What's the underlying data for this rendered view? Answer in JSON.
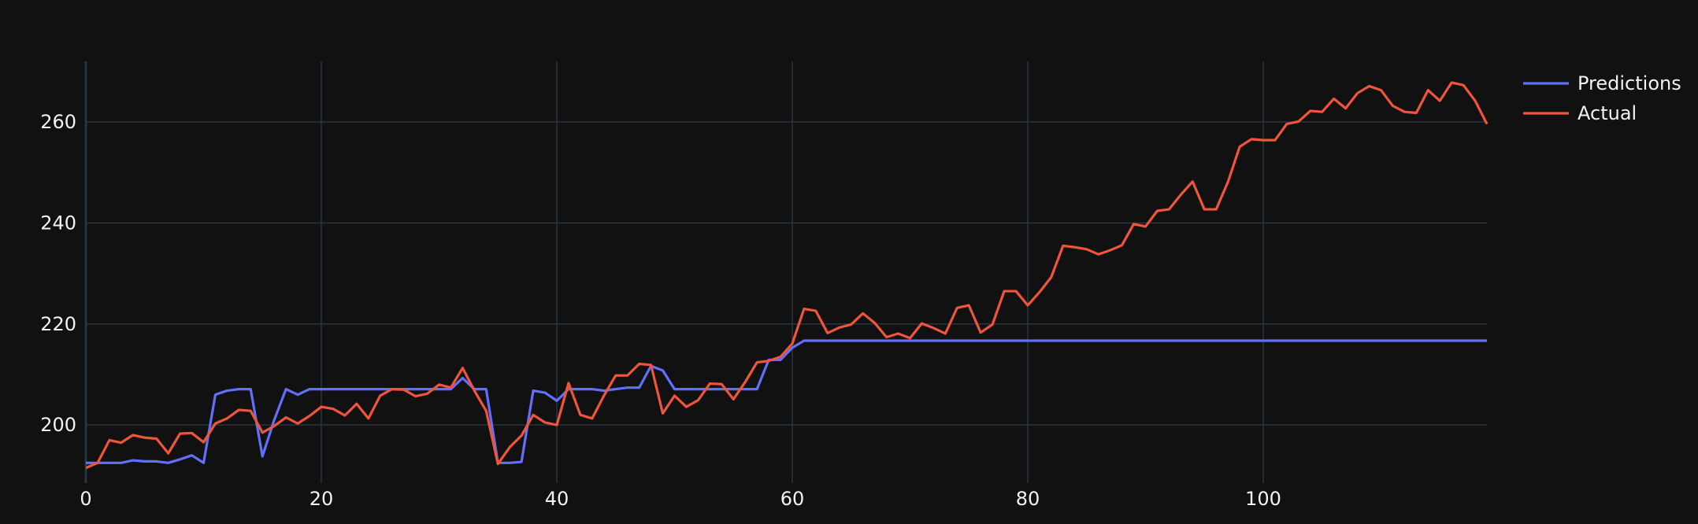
{
  "colors": {
    "background": "#111111",
    "grid": "#283442",
    "zeroline": "#283442",
    "text": "#f2f2f2",
    "predictions": "#636efa",
    "actual": "#ef553b"
  },
  "chart_data": {
    "type": "line",
    "title": "",
    "xlabel": "",
    "ylabel": "",
    "xlim": [
      0,
      119
    ],
    "ylim": [
      188.5,
      272
    ],
    "x_ticks": [
      0,
      20,
      40,
      60,
      80,
      100
    ],
    "y_ticks": [
      200,
      220,
      240,
      260
    ],
    "grid": true,
    "legend_position": "top-right",
    "series": [
      {
        "name": "Predictions",
        "color": "#636efa",
        "values": [
          192.5,
          192.5,
          192.5,
          192.5,
          193,
          192.8,
          192.8,
          192.5,
          193.2,
          194,
          192.5,
          206,
          206.8,
          207.1,
          207.1,
          193.8,
          201,
          207.1,
          206,
          207.1,
          207.1,
          207.1,
          207.1,
          207.1,
          207.1,
          207.1,
          207.1,
          207.1,
          207.1,
          207.1,
          207.1,
          207.1,
          209.3,
          207.1,
          207.1,
          192.5,
          192.5,
          192.7,
          206.8,
          206.4,
          204.8,
          207.1,
          207.1,
          207.1,
          206.8,
          207.1,
          207.4,
          207.4,
          211.7,
          210.8,
          207.1,
          207.1,
          207.1,
          207.1,
          207.1,
          207.1,
          207.1,
          207.1,
          212.9,
          212.9,
          215.3,
          216.7,
          216.7,
          216.7,
          216.7,
          216.7,
          216.7,
          216.7,
          216.7,
          216.7,
          216.7,
          216.7,
          216.7,
          216.7,
          216.7,
          216.7,
          216.7,
          216.7,
          216.7,
          216.7,
          216.7,
          216.7,
          216.7,
          216.7,
          216.7,
          216.7,
          216.7,
          216.7,
          216.7,
          216.7,
          216.7,
          216.7,
          216.7,
          216.7,
          216.7,
          216.7,
          216.7,
          216.7,
          216.7,
          216.7,
          216.7,
          216.7,
          216.7,
          216.7,
          216.7,
          216.7,
          216.7,
          216.7,
          216.7,
          216.7,
          216.7,
          216.7,
          216.7,
          216.7,
          216.7,
          216.7,
          216.7,
          216.7,
          216.7,
          216.7
        ]
      },
      {
        "name": "Actual",
        "color": "#ef553b",
        "values": [
          191.5,
          192.5,
          197,
          196.5,
          198,
          197.5,
          197.3,
          194.4,
          198.3,
          198.4,
          196.6,
          200.3,
          201.3,
          203,
          202.8,
          198.5,
          199.8,
          201.5,
          200.3,
          201.8,
          203.6,
          203.2,
          201.9,
          204.2,
          201.3,
          205.8,
          207.1,
          207,
          205.7,
          206.2,
          208,
          207.4,
          211.3,
          206.8,
          202.8,
          192.3,
          195.6,
          197.9,
          202,
          200.5,
          200,
          208.3,
          202,
          201.3,
          205.8,
          209.8,
          209.8,
          212.1,
          211.9,
          202.3,
          205.8,
          203.6,
          204.9,
          208.2,
          208.1,
          205.1,
          208.5,
          212.4,
          212.7,
          213.5,
          216.1,
          223,
          222.6,
          218.2,
          219.3,
          219.9,
          222.1,
          220.2,
          217.4,
          218.1,
          217.2,
          220.1,
          219.2,
          218.1,
          223.2,
          223.7,
          218.3,
          219.9,
          226.5,
          226.5,
          223.7,
          226.3,
          229.3,
          235.5,
          235.2,
          234.8,
          233.8,
          234.6,
          235.6,
          239.8,
          239.3,
          242.4,
          242.7,
          245.6,
          248.2,
          242.7,
          242.7,
          248.1,
          255.1,
          256.6,
          256.4,
          256.4,
          259.6,
          260.1,
          262.2,
          262,
          264.6,
          262.7,
          265.7,
          267.1,
          266.3,
          263.2,
          262,
          261.8,
          266.3,
          264.2,
          267.8,
          267.3,
          264.2,
          259.6
        ]
      }
    ]
  }
}
